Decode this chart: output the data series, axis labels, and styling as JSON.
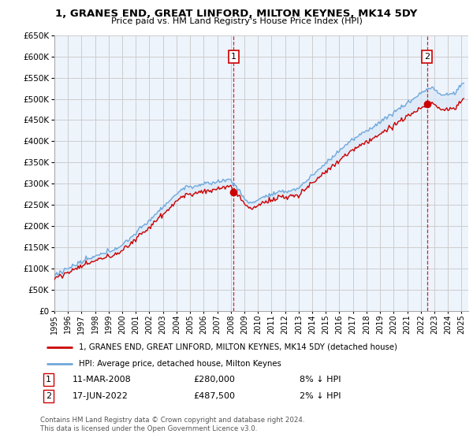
{
  "title": "1, GRANES END, GREAT LINFORD, MILTON KEYNES, MK14 5DY",
  "subtitle": "Price paid vs. HM Land Registry's House Price Index (HPI)",
  "legend_line1": "1, GRANES END, GREAT LINFORD, MILTON KEYNES, MK14 5DY (detached house)",
  "legend_line2": "HPI: Average price, detached house, Milton Keynes",
  "sale1_date": "11-MAR-2008",
  "sale1_price": 280000,
  "sale1_label": "8% ↓ HPI",
  "sale2_date": "17-JUN-2022",
  "sale2_price": 487500,
  "sale2_label": "2% ↓ HPI",
  "footnote": "Contains HM Land Registry data © Crown copyright and database right 2024.\nThis data is licensed under the Open Government Licence v3.0.",
  "ylim": [
    0,
    650000
  ],
  "yticks": [
    0,
    50000,
    100000,
    150000,
    200000,
    250000,
    300000,
    350000,
    400000,
    450000,
    500000,
    550000,
    600000,
    650000
  ],
  "hpi_color": "#6fa8dc",
  "hpi_fill_color": "#dce9f7",
  "property_color": "#cc0000",
  "vline_color": "#cc0000",
  "background_color": "#ffffff",
  "grid_color": "#cccccc",
  "sale1_x": 2008.208,
  "sale2_x": 2022.458
}
